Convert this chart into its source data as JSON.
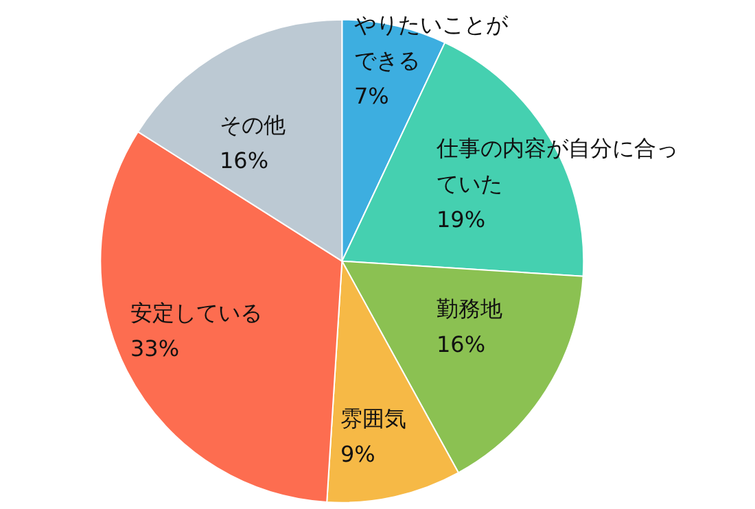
{
  "chart_data": {
    "type": "pie",
    "categories": [
      "やりたいことができる",
      "仕事の内容が自分に合っていた",
      "勤務地",
      "雰囲気",
      "安定している",
      "その他"
    ],
    "values": [
      7,
      19,
      16,
      9,
      33,
      16
    ],
    "value_labels": [
      "7%",
      "19%",
      "16%",
      "9%",
      "33%",
      "16%"
    ],
    "colors": [
      "#3daee0",
      "#45d0b0",
      "#8bc152",
      "#f6b946",
      "#fd6d50",
      "#bcc9d3"
    ],
    "legend": false
  }
}
